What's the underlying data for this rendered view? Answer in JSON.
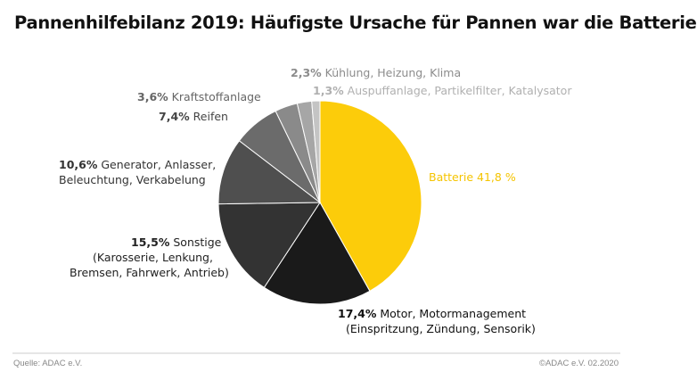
{
  "title": "Pannenhilfebilanz 2019: Häufigste Ursache für Pannen war die Batterie",
  "chart_data": {
    "type": "pie",
    "title": "Pannenhilfebilanz 2019: Häufigste Ursache für Pannen war die Batterie",
    "start": "top",
    "direction": "clockwise",
    "slices": [
      {
        "value": 41.8,
        "pct": "41,8 %",
        "label": "Batterie",
        "color": "#fccc0a"
      },
      {
        "value": 17.4,
        "pct": "17,4%",
        "label": "Motor, Motormanagement",
        "label2": "(Einspritzung, Zündung, Sensorik)",
        "color": "#1a1a1a"
      },
      {
        "value": 15.5,
        "pct": "15,5%",
        "label": "Sonstige",
        "label2": "(Karosserie, Lenkung,",
        "label3": "Bremsen, Fahrwerk, Antrieb)",
        "color": "#333333"
      },
      {
        "value": 10.6,
        "pct": "10,6%",
        "label": "Generator, Anlasser,",
        "label2": "Beleuchtung, Verkabelung",
        "color": "#4f4f4f"
      },
      {
        "value": 7.4,
        "pct": "7,4%",
        "label": "Reifen",
        "color": "#6b6b6b"
      },
      {
        "value": 3.6,
        "pct": "3,6%",
        "label": "Kraftstoffanlage",
        "color": "#8a8a8a"
      },
      {
        "value": 2.3,
        "pct": "2,3%",
        "label": "Kühlung, Heizung, Klima",
        "color": "#a6a6a6"
      },
      {
        "value": 1.3,
        "pct": "1,3%",
        "label": "Auspuffanlage, Partikelfilter, Katalysator",
        "color": "#c4c4c4"
      }
    ]
  },
  "footer": {
    "source": "Quelle: ADAC e.V.",
    "credit": "©ADAC e.V.  02.2020"
  }
}
